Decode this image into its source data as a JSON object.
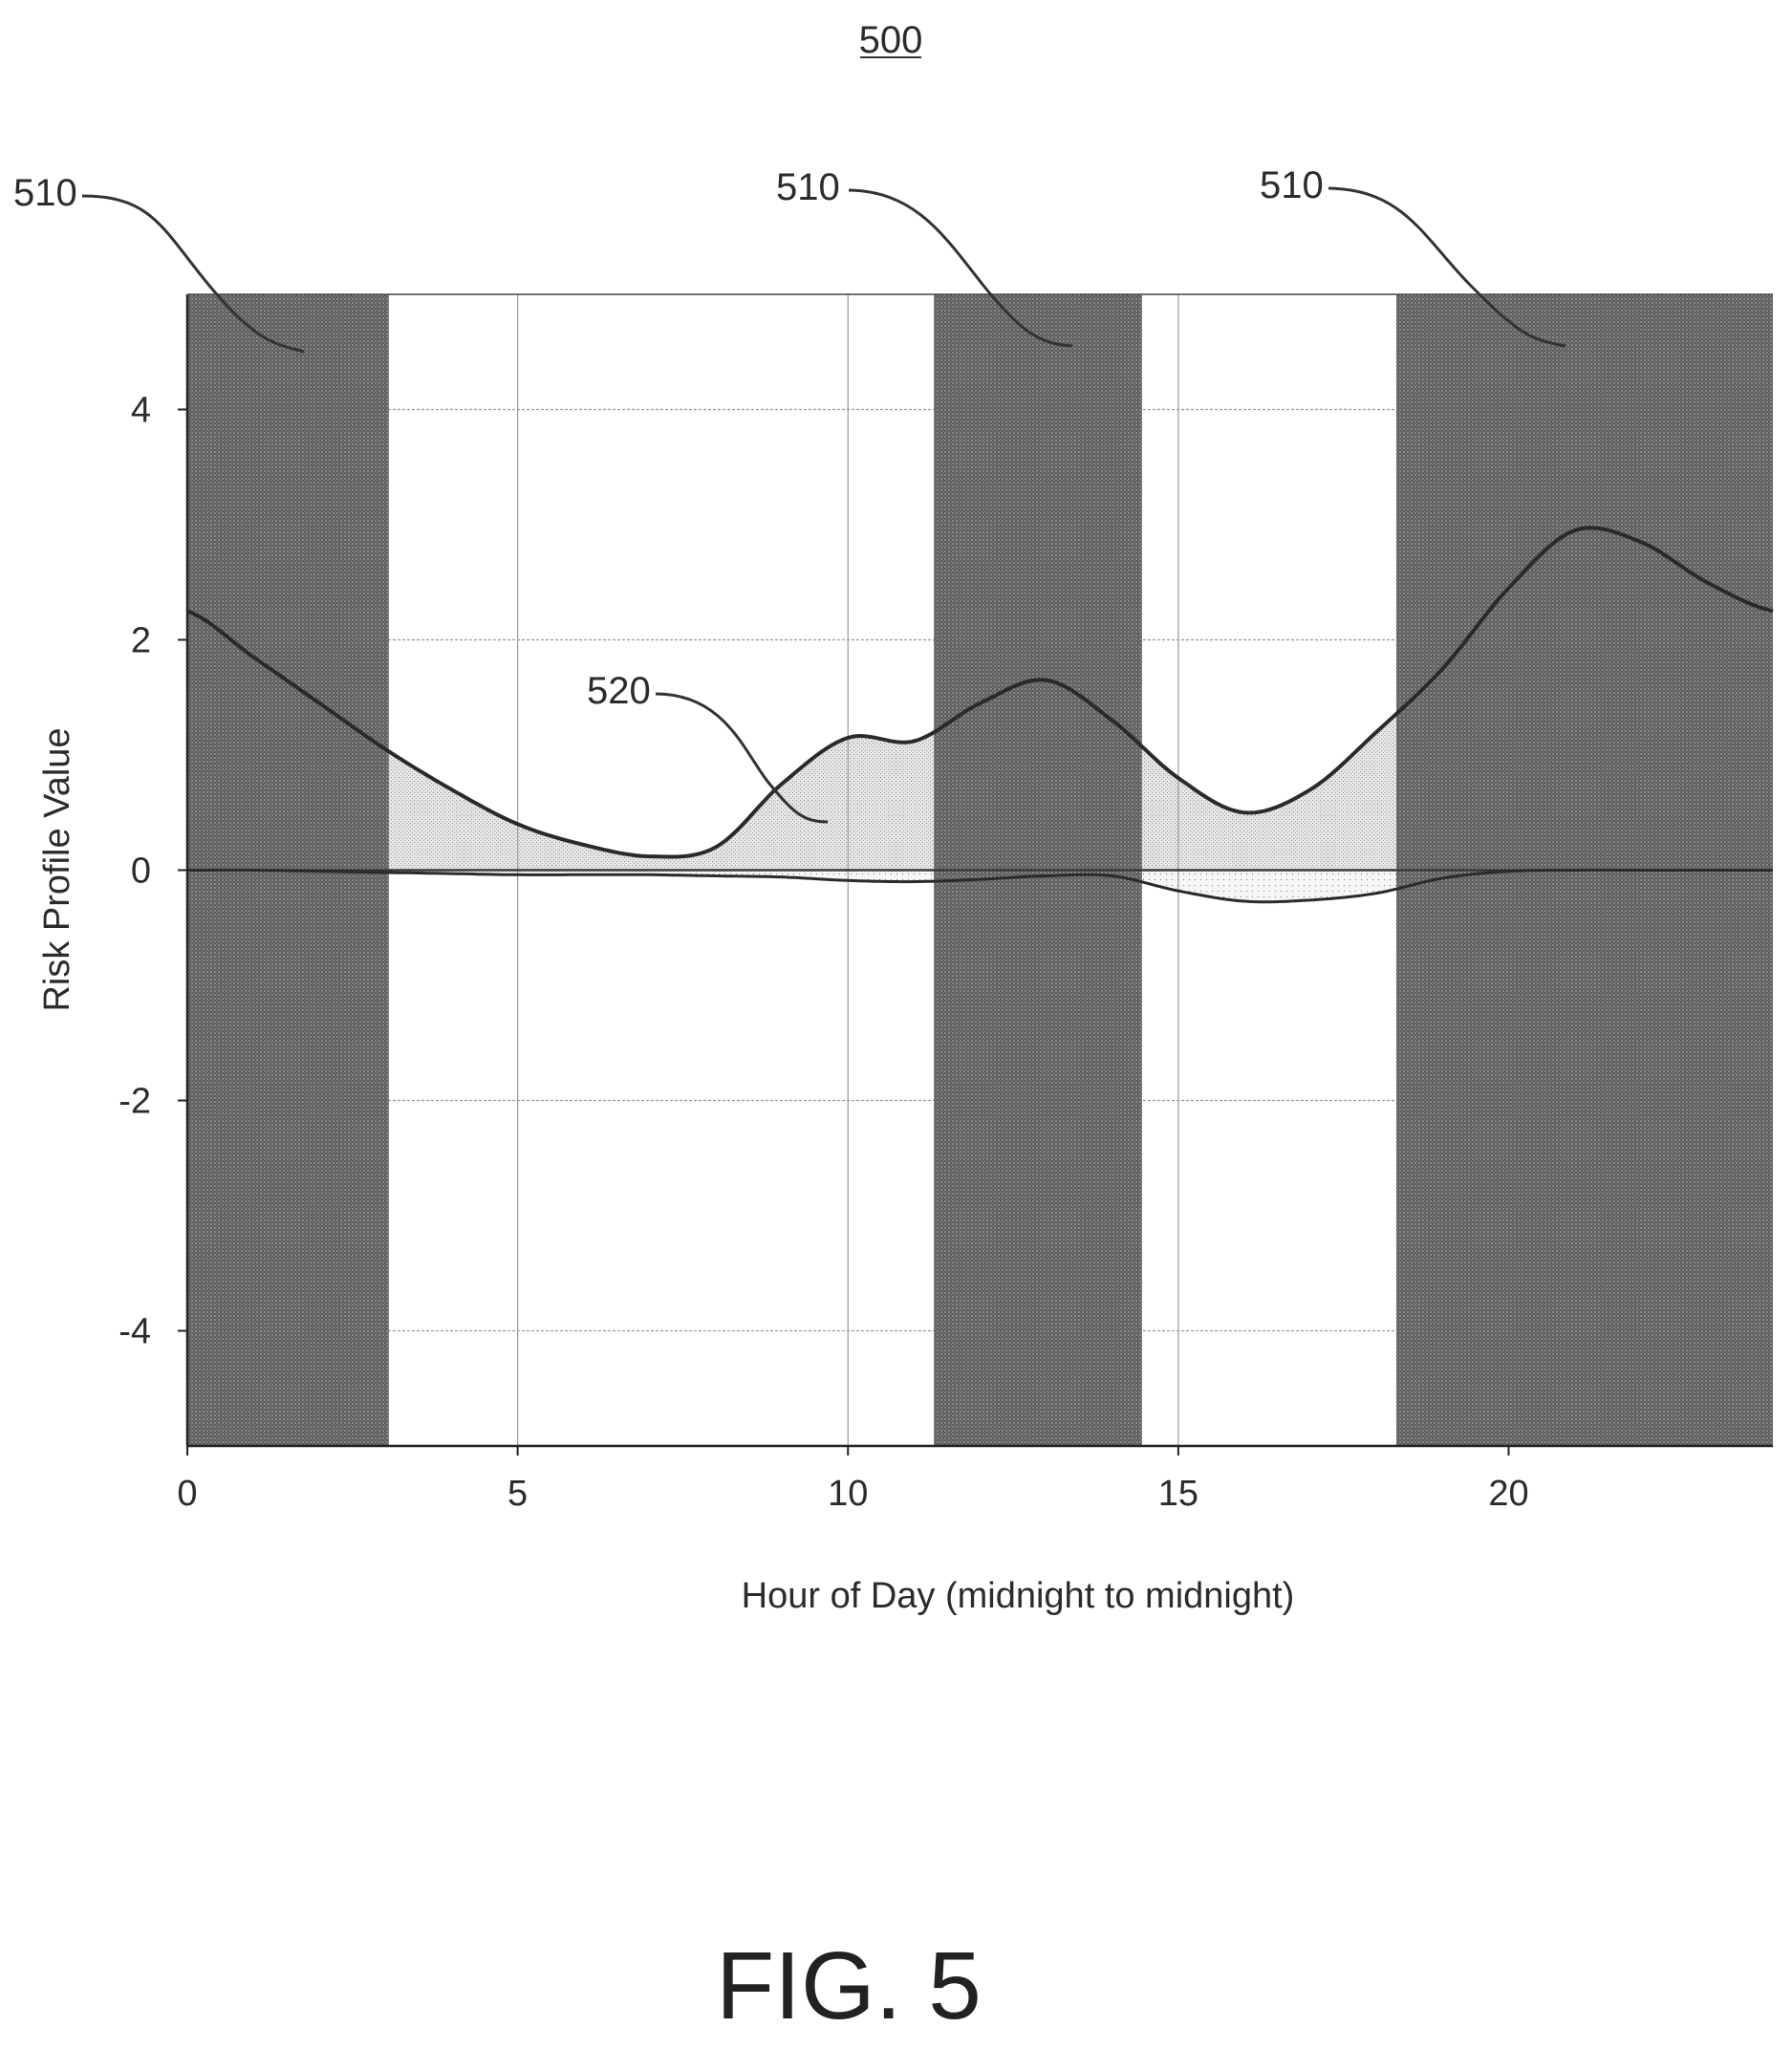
{
  "figure": {
    "number_label": "500",
    "caption": "FIG. 5",
    "reference_labels": {
      "shaded_region": "510",
      "curve": "520"
    }
  },
  "chart_data": {
    "type": "area",
    "title": "",
    "xlabel": "Hour of Day (midnight to midnight)",
    "ylabel": "Risk Profile Value",
    "xlim": [
      0,
      24
    ],
    "ylim": [
      -5,
      5
    ],
    "xticks": [
      0,
      5,
      10,
      15,
      20
    ],
    "yticks": [
      4,
      2,
      0,
      -2,
      -4
    ],
    "grid": true,
    "shaded_regions": [
      {
        "x_start": 0,
        "x_end": 3.05,
        "label": "510"
      },
      {
        "x_start": 11.3,
        "x_end": 14.45,
        "label": "510"
      },
      {
        "x_start": 18.3,
        "x_end": 24,
        "label": "510"
      }
    ],
    "series": [
      {
        "label": "520",
        "x": [
          0,
          1,
          2,
          3,
          4,
          5,
          6,
          7,
          8,
          9,
          10,
          11,
          12,
          13,
          14,
          15,
          16,
          17,
          18,
          19,
          20,
          21,
          22,
          23,
          24
        ],
        "values": [
          2.25,
          1.85,
          1.45,
          1.05,
          0.7,
          0.4,
          0.22,
          0.12,
          0.2,
          0.75,
          1.15,
          1.12,
          1.45,
          1.65,
          1.3,
          0.8,
          0.5,
          0.7,
          1.2,
          1.75,
          2.45,
          2.95,
          2.85,
          2.5,
          2.25
        ]
      },
      {
        "x": [
          0,
          1,
          2,
          3,
          4,
          5,
          6,
          7,
          8,
          9,
          10,
          11,
          12,
          13,
          14,
          15,
          16,
          17,
          18,
          19,
          20,
          21,
          22,
          23,
          24
        ],
        "values": [
          0,
          0,
          -0.01,
          -0.02,
          -0.03,
          -0.04,
          -0.04,
          -0.04,
          -0.05,
          -0.06,
          -0.09,
          -0.1,
          -0.08,
          -0.05,
          -0.05,
          -0.18,
          -0.27,
          -0.26,
          -0.2,
          -0.07,
          -0.01,
          0,
          0,
          0,
          0
        ]
      }
    ]
  }
}
